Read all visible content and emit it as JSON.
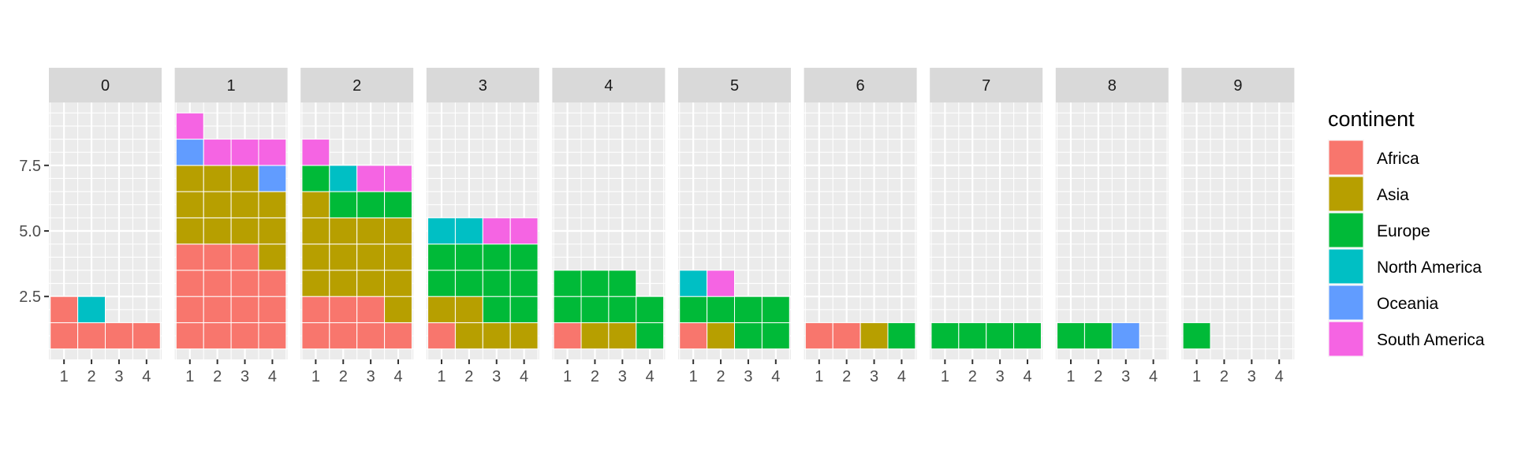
{
  "chart_data": {
    "type": "waffle-facet",
    "facet_variable": "",
    "facets": [
      "0",
      "1",
      "2",
      "3",
      "4",
      "5",
      "6",
      "7",
      "8",
      "9"
    ],
    "x_ticks": [
      "1",
      "2",
      "3",
      "4"
    ],
    "y_ticks": [
      2.5,
      5.0,
      7.5
    ],
    "y_tick_labels": [
      "2.5",
      "5.0",
      "7.5"
    ],
    "ylim": [
      0.1,
      9.9
    ],
    "xlim": [
      0.45,
      4.55
    ],
    "legend": {
      "title": "continent",
      "position": "right",
      "entries": [
        {
          "name": "Africa",
          "color": "#F8766D"
        },
        {
          "name": "Asia",
          "color": "#B79F00"
        },
        {
          "name": "Europe",
          "color": "#00BA38"
        },
        {
          "name": "North America",
          "color": "#00BFC4"
        },
        {
          "name": "Oceania",
          "color": "#619CFF"
        },
        {
          "name": "South America",
          "color": "#F564E3"
        }
      ]
    },
    "panels": [
      {
        "facet": "0",
        "rows": [
          [
            "Africa",
            "Africa",
            "Africa",
            "Africa"
          ],
          [
            "Africa",
            "North America"
          ]
        ]
      },
      {
        "facet": "1",
        "rows": [
          [
            "Africa",
            "Africa",
            "Africa",
            "Africa"
          ],
          [
            "Africa",
            "Africa",
            "Africa",
            "Africa"
          ],
          [
            "Africa",
            "Africa",
            "Africa",
            "Africa"
          ],
          [
            "Africa",
            "Africa",
            "Africa",
            "Asia"
          ],
          [
            "Asia",
            "Asia",
            "Asia",
            "Asia"
          ],
          [
            "Asia",
            "Asia",
            "Asia",
            "Asia"
          ],
          [
            "Asia",
            "Asia",
            "Asia",
            "Oceania"
          ],
          [
            "Oceania",
            "South America",
            "South America",
            "South America"
          ],
          [
            "South America"
          ]
        ]
      },
      {
        "facet": "2",
        "rows": [
          [
            "Africa",
            "Africa",
            "Africa",
            "Africa"
          ],
          [
            "Africa",
            "Africa",
            "Africa",
            "Asia"
          ],
          [
            "Asia",
            "Asia",
            "Asia",
            "Asia"
          ],
          [
            "Asia",
            "Asia",
            "Asia",
            "Asia"
          ],
          [
            "Asia",
            "Asia",
            "Asia",
            "Asia"
          ],
          [
            "Asia",
            "Europe",
            "Europe",
            "Europe"
          ],
          [
            "Europe",
            "North America",
            "South America",
            "South America"
          ],
          [
            "South America"
          ]
        ]
      },
      {
        "facet": "3",
        "rows": [
          [
            "Africa",
            "Asia",
            "Asia",
            "Asia"
          ],
          [
            "Asia",
            "Asia",
            "Europe",
            "Europe"
          ],
          [
            "Europe",
            "Europe",
            "Europe",
            "Europe"
          ],
          [
            "Europe",
            "Europe",
            "Europe",
            "Europe"
          ],
          [
            "North America",
            "North America",
            "South America",
            "South America"
          ]
        ]
      },
      {
        "facet": "4",
        "rows": [
          [
            "Africa",
            "Asia",
            "Asia",
            "Europe"
          ],
          [
            "Europe",
            "Europe",
            "Europe",
            "Europe"
          ],
          [
            "Europe",
            "Europe",
            "Europe"
          ]
        ]
      },
      {
        "facet": "5",
        "rows": [
          [
            "Africa",
            "Asia",
            "Europe",
            "Europe"
          ],
          [
            "Europe",
            "Europe",
            "Europe",
            "Europe"
          ],
          [
            "North America",
            "South America"
          ]
        ]
      },
      {
        "facet": "6",
        "rows": [
          [
            "Africa",
            "Africa",
            "Asia",
            "Europe"
          ]
        ]
      },
      {
        "facet": "7",
        "rows": [
          [
            "Europe",
            "Europe",
            "Europe",
            "Europe"
          ]
        ]
      },
      {
        "facet": "8",
        "rows": [
          [
            "Europe",
            "Europe",
            "Oceania"
          ]
        ]
      },
      {
        "facet": "9",
        "rows": [
          [
            "Europe"
          ]
        ]
      }
    ]
  }
}
